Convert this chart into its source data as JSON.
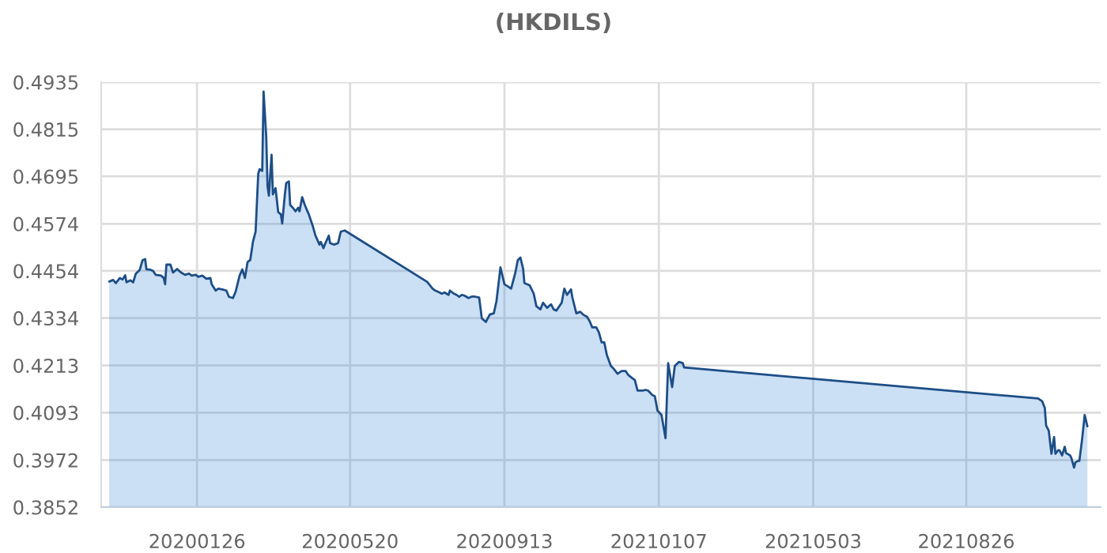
{
  "chart_data": {
    "type": "area",
    "title": "(HKDILS)",
    "x": [
      "2019-11-21",
      "2019-11-24",
      "2019-11-26",
      "2019-11-29",
      "2019-12-01",
      "2019-12-03",
      "2019-12-04",
      "2019-12-07",
      "2019-12-09",
      "2019-12-11",
      "2019-12-14",
      "2019-12-16",
      "2019-12-18",
      "2019-12-19",
      "2019-12-22",
      "2019-12-24",
      "2019-12-26",
      "2019-12-30",
      "2020-01-01",
      "2020-01-02",
      "2020-01-03",
      "2020-01-06",
      "2020-01-08",
      "2020-01-11",
      "2020-01-14",
      "2020-01-17",
      "2020-01-20",
      "2020-01-22",
      "2020-01-25",
      "2020-01-27",
      "2020-01-30",
      "2020-02-02",
      "2020-02-05",
      "2020-02-06",
      "2020-02-09",
      "2020-02-11",
      "2020-02-14",
      "2020-02-17",
      "2020-02-19",
      "2020-02-22",
      "2020-02-24",
      "2020-02-27",
      "2020-02-29",
      "2020-03-02",
      "2020-03-04",
      "2020-03-06",
      "2020-03-08",
      "2020-03-10",
      "2020-03-12",
      "2020-03-13",
      "2020-03-15",
      "2020-03-16",
      "2020-03-18",
      "2020-03-19",
      "2020-03-20",
      "2020-03-22",
      "2020-03-23",
      "2020-03-25",
      "2020-03-27",
      "2020-03-29",
      "2020-03-30",
      "2020-04-01",
      "2020-04-02",
      "2020-04-04",
      "2020-04-05",
      "2020-04-07",
      "2020-04-09",
      "2020-04-11",
      "2020-04-12",
      "2020-04-14",
      "2020-04-16",
      "2020-04-19",
      "2020-04-22",
      "2020-04-24",
      "2020-04-27",
      "2020-04-28",
      "2020-04-30",
      "2020-05-01",
      "2020-05-04",
      "2020-05-05",
      "2020-05-08",
      "2020-05-11",
      "2020-05-13",
      "2020-05-16",
      "2020-07-17",
      "2020-07-21",
      "2020-07-23",
      "2020-07-25",
      "2020-07-28",
      "2020-07-30",
      "2020-08-02",
      "2020-08-03",
      "2020-08-06",
      "2020-08-08",
      "2020-08-10",
      "2020-08-12",
      "2020-08-14",
      "2020-08-17",
      "2020-08-19",
      "2020-08-21",
      "2020-08-25",
      "2020-08-27",
      "2020-08-30",
      "2020-09-02",
      "2020-09-05",
      "2020-09-07",
      "2020-09-10",
      "2020-09-13",
      "2020-09-15",
      "2020-09-18",
      "2020-09-21",
      "2020-09-23",
      "2020-09-25",
      "2020-09-27",
      "2020-09-28",
      "2020-10-02",
      "2020-10-05",
      "2020-10-07",
      "2020-10-10",
      "2020-10-12",
      "2020-10-15",
      "2020-10-18",
      "2020-10-20",
      "2020-10-22",
      "2020-10-26",
      "2020-10-28",
      "2020-10-30",
      "2020-11-02",
      "2020-11-03",
      "2020-11-06",
      "2020-11-09",
      "2020-11-11",
      "2020-11-14",
      "2020-11-16",
      "2020-11-18",
      "2020-11-21",
      "2020-11-23",
      "2020-11-25",
      "2020-11-27",
      "2020-11-29",
      "2020-12-02",
      "2020-12-04",
      "2020-12-07",
      "2020-12-10",
      "2020-12-13",
      "2020-12-15",
      "2020-12-18",
      "2020-12-20",
      "2020-12-22",
      "2020-12-26",
      "2020-12-28",
      "2020-12-30",
      "2021-01-02",
      "2021-01-04",
      "2021-01-06",
      "2021-01-09",
      "2021-01-12",
      "2021-01-14",
      "2021-01-17",
      "2021-01-19",
      "2021-01-22",
      "2021-01-25",
      "2021-01-26",
      "2021-10-19",
      "2021-10-22",
      "2021-10-24",
      "2021-10-25",
      "2021-10-27",
      "2021-10-29",
      "2021-10-31",
      "2021-11-01",
      "2021-11-03",
      "2021-11-04",
      "2021-11-06",
      "2021-11-08",
      "2021-11-09",
      "2021-11-12",
      "2021-11-13",
      "2021-11-15",
      "2021-11-16",
      "2021-11-18",
      "2021-11-19",
      "2021-11-21",
      "2021-11-23",
      "2021-11-25"
    ],
    "series": [
      {
        "color": "#2f7ed8",
        "values": [
          0.4427,
          0.4431,
          0.4423,
          0.4436,
          0.4432,
          0.4443,
          0.4425,
          0.443,
          0.4425,
          0.4447,
          0.4457,
          0.4481,
          0.4484,
          0.4458,
          0.4457,
          0.4454,
          0.4444,
          0.4442,
          0.4436,
          0.442,
          0.447,
          0.447,
          0.445,
          0.4459,
          0.445,
          0.4444,
          0.4447,
          0.4442,
          0.4444,
          0.4439,
          0.4442,
          0.4434,
          0.4436,
          0.442,
          0.4404,
          0.4409,
          0.4407,
          0.4404,
          0.4388,
          0.4385,
          0.4401,
          0.4442,
          0.4458,
          0.4436,
          0.4477,
          0.4482,
          0.4528,
          0.4554,
          0.4702,
          0.4713,
          0.4709,
          0.4911,
          0.4796,
          0.4669,
          0.4646,
          0.475,
          0.4649,
          0.4665,
          0.4604,
          0.4598,
          0.4575,
          0.4649,
          0.4678,
          0.4682,
          0.4622,
          0.4615,
          0.4606,
          0.4615,
          0.4606,
          0.4642,
          0.4622,
          0.4598,
          0.4568,
          0.4544,
          0.4521,
          0.4528,
          0.4512,
          0.4521,
          0.4544,
          0.4525,
          0.4521,
          0.4525,
          0.4554,
          0.4557,
          0.4426,
          0.4409,
          0.4404,
          0.4401,
          0.4396,
          0.4399,
          0.4393,
          0.4404,
          0.4396,
          0.4393,
          0.4388,
          0.4393,
          0.4391,
          0.4385,
          0.4388,
          0.4389,
          0.4386,
          0.4333,
          0.4324,
          0.4343,
          0.4346,
          0.4377,
          0.4463,
          0.442,
          0.4416,
          0.4409,
          0.4447,
          0.4481,
          0.4488,
          0.446,
          0.4423,
          0.4417,
          0.4396,
          0.4364,
          0.4356,
          0.4373,
          0.436,
          0.4369,
          0.4356,
          0.4353,
          0.4373,
          0.4409,
          0.4393,
          0.4407,
          0.4387,
          0.4346,
          0.435,
          0.4343,
          0.4337,
          0.4326,
          0.431,
          0.431,
          0.4297,
          0.4272,
          0.4272,
          0.4239,
          0.4212,
          0.4205,
          0.4192,
          0.4199,
          0.4199,
          0.4189,
          0.4181,
          0.4176,
          0.4149,
          0.4149,
          0.4151,
          0.4149,
          0.4138,
          0.4135,
          0.4098,
          0.4087,
          0.4028,
          0.4219,
          0.4158,
          0.4212,
          0.4222,
          0.4219,
          0.4208,
          0.4129,
          0.4122,
          0.4105,
          0.406,
          0.4047,
          0.3988,
          0.4031,
          0.3988,
          0.3997,
          0.3997,
          0.3984,
          0.4006,
          0.399,
          0.3984,
          0.3977,
          0.3953,
          0.3966,
          0.397,
          0.397,
          0.4024,
          0.4087,
          0.4058
        ]
      }
    ],
    "xlim": [
      "2019-11-15",
      "2021-12-05"
    ],
    "xticks": [
      {
        "value": "2020-01-26",
        "label": "20200126"
      },
      {
        "value": "2020-05-20",
        "label": "20200520"
      },
      {
        "value": "2020-09-13",
        "label": "20200913"
      },
      {
        "value": "2021-01-07",
        "label": "20210107"
      },
      {
        "value": "2021-05-03",
        "label": "20210503"
      },
      {
        "value": "2021-08-26",
        "label": "20210826"
      }
    ],
    "ylim": [
      0.3852,
      0.4935
    ],
    "yticks": [
      0.3852,
      0.3972,
      0.4093,
      0.4213,
      0.4334,
      0.4454,
      0.4574,
      0.4695,
      0.4815,
      0.4935
    ],
    "grid": true
  }
}
